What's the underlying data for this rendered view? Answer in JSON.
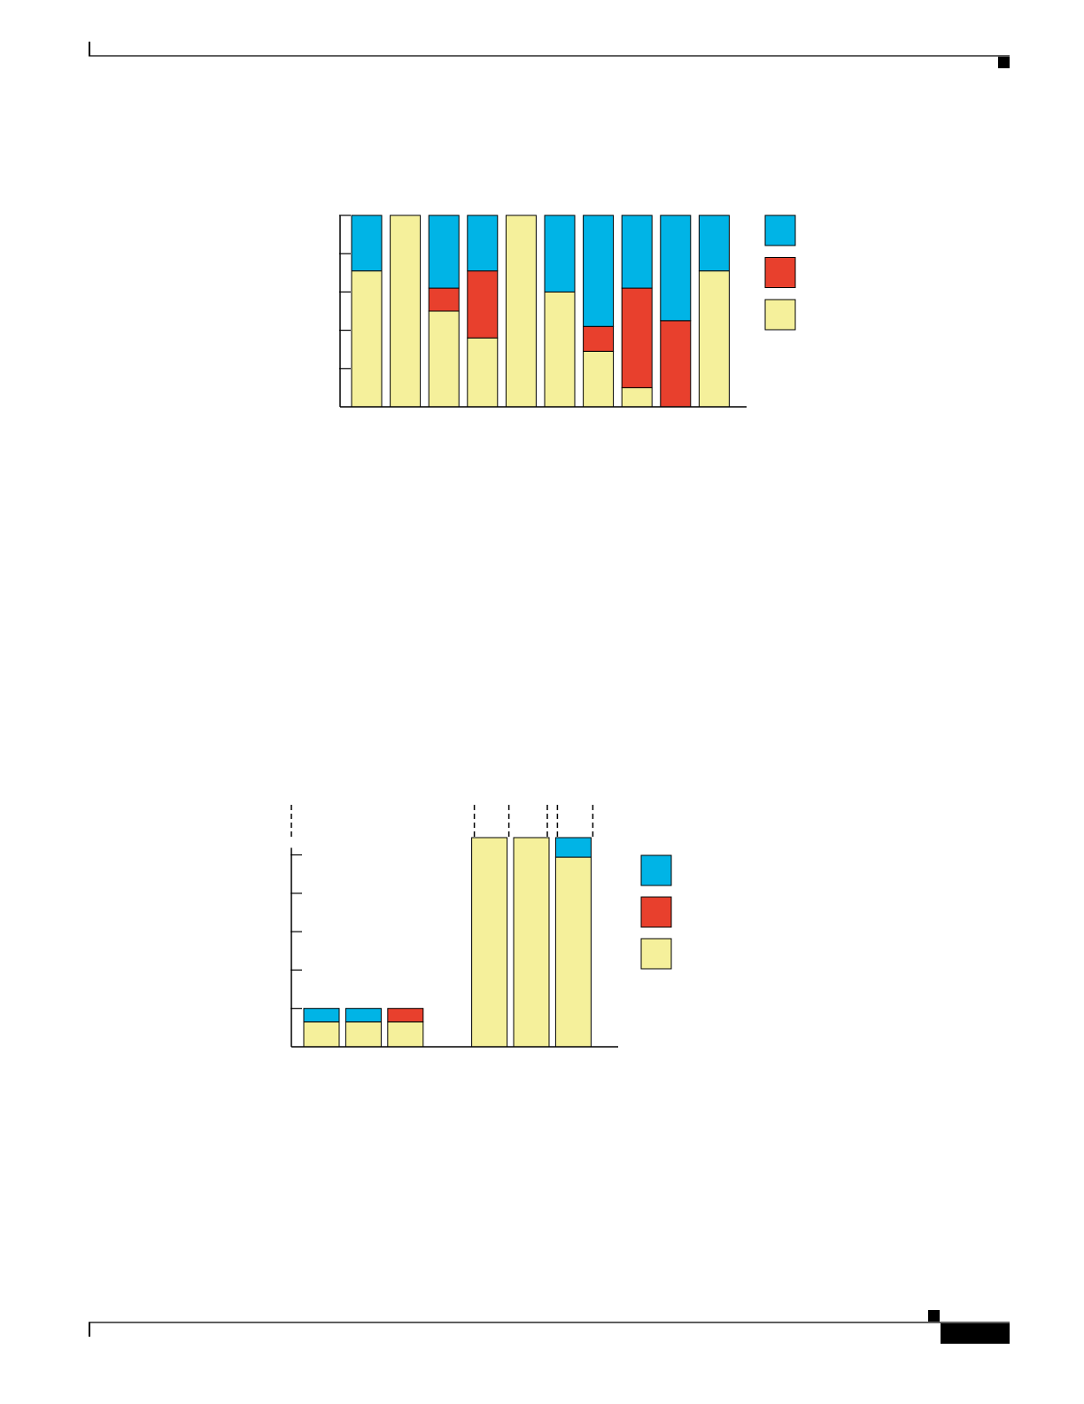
{
  "chart_data": [
    {
      "type": "bar",
      "stacked": true,
      "legend": true,
      "categories": [
        null,
        null,
        null,
        null,
        null,
        null,
        null,
        null,
        null,
        null
      ],
      "series": [
        {
          "color": "#f5f09b",
          "values": [
            71,
            100,
            50,
            36,
            100,
            60,
            29,
            10,
            0,
            71
          ]
        },
        {
          "color": "#e8402d",
          "values": [
            0,
            0,
            12,
            35,
            0,
            0,
            13,
            52,
            45,
            0
          ]
        },
        {
          "color": "#00b4e6",
          "values": [
            29,
            0,
            38,
            29,
            0,
            40,
            58,
            38,
            55,
            29
          ]
        }
      ],
      "ylim": [
        0,
        100
      ],
      "yticks": [
        20,
        40,
        60,
        80,
        100
      ]
    },
    {
      "type": "bar",
      "stacked": true,
      "legend": true,
      "axis_break": true,
      "categories": [
        null,
        null,
        null,
        null,
        null,
        null,
        null
      ],
      "series": [
        {
          "color": "#f5f09b",
          "values": [
            0.65,
            0.65,
            0.65,
            null,
            5.45,
            5.45,
            4.94
          ]
        },
        {
          "color": "#e8402d",
          "values": [
            0,
            0,
            0.35,
            null,
            0,
            0,
            0
          ]
        },
        {
          "color": "#00b4e6",
          "values": [
            0.35,
            0.35,
            0,
            null,
            0,
            0,
            0.51
          ]
        }
      ],
      "ylim": [
        0,
        5.45
      ],
      "yticks": [
        1,
        2,
        3,
        4,
        5
      ]
    }
  ]
}
